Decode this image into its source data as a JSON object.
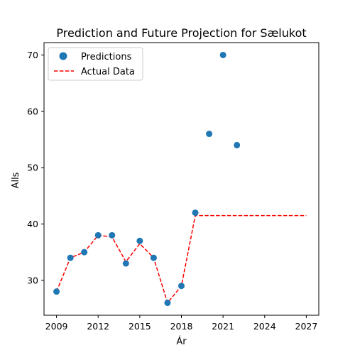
{
  "chart_data": {
    "type": "scatter",
    "title": "Prediction and Future Projection for Sælukot",
    "xlabel": "Ár",
    "ylabel": "Alls",
    "xlim": [
      2008.1,
      2027.9
    ],
    "ylim": [
      23.8,
      72.2
    ],
    "xticks": [
      2009,
      2012,
      2015,
      2018,
      2021,
      2024,
      2027
    ],
    "yticks": [
      30,
      40,
      50,
      60,
      70
    ],
    "grid": false,
    "legend_position": "top-left",
    "series": [
      {
        "name": "Predictions",
        "kind": "scatter",
        "color": "#1f77b4",
        "x": [
          2009,
          2010,
          2011,
          2012,
          2013,
          2014,
          2015,
          2016,
          2017,
          2018,
          2019,
          2020,
          2021,
          2022
        ],
        "y": [
          28,
          34,
          35,
          38,
          38,
          33,
          37,
          34,
          26,
          29,
          42,
          56,
          70,
          54
        ]
      },
      {
        "name": "Actual Data",
        "kind": "line",
        "style": "dashed",
        "color": "#ff0000",
        "x": [
          2009,
          2010,
          2011,
          2012,
          2013,
          2014,
          2015,
          2016,
          2017,
          2018,
          2019,
          2020,
          2021,
          2022,
          2023,
          2024,
          2025,
          2026,
          2027
        ],
        "y": [
          28,
          34,
          35,
          38,
          37.7,
          33.3,
          36.5,
          34,
          26,
          29,
          41.5,
          41.5,
          41.5,
          41.5,
          41.5,
          41.5,
          41.5,
          41.5,
          41.5
        ]
      }
    ]
  }
}
